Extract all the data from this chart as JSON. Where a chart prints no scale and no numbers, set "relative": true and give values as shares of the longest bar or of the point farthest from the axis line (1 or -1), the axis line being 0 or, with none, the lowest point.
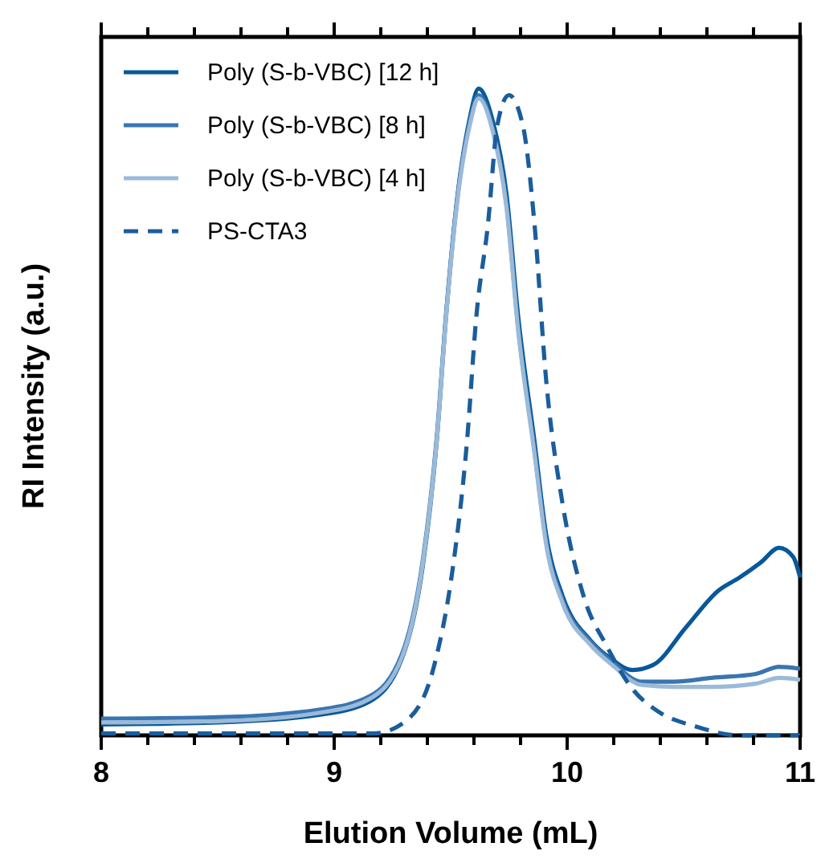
{
  "chart_data": {
    "type": "line",
    "relative": true,
    "xlabel": "Elution Volume (mL)",
    "ylabel": "RI Intensity (a.u.)",
    "xlim": [
      8,
      11
    ],
    "xticks": [
      8,
      {
        "value": 8.2,
        "label": null
      },
      {
        "value": 8.4,
        "label": null
      },
      {
        "value": 8.6,
        "label": null
      },
      {
        "value": 8.8,
        "label": null
      },
      9,
      {
        "value": 9.2,
        "label": null
      },
      {
        "value": 9.4,
        "label": null
      },
      {
        "value": 9.6,
        "label": null
      },
      {
        "value": 9.8,
        "label": null
      },
      10,
      {
        "value": 10.2,
        "label": null
      },
      {
        "value": 10.4,
        "label": null
      },
      {
        "value": 10.6,
        "label": null
      },
      {
        "value": 10.8,
        "label": null
      },
      11
    ],
    "tick_labels": "x",
    "grid": false,
    "legend": "top left",
    "marker": "none",
    "series": [
      {
        "name": "Poly (S-b-VBC) [12 h]",
        "color": "#08589a",
        "line_style": "solid",
        "x": [
          8.0,
          8.5,
          8.94,
          9.15,
          9.29,
          9.38,
          9.44,
          9.48,
          9.53,
          9.58,
          9.62,
          9.68,
          9.74,
          9.79,
          9.86,
          9.91,
          9.98,
          10.1,
          10.19,
          10.28,
          10.37,
          10.51,
          10.65,
          10.74,
          10.83,
          10.91,
          10.97,
          11.0
        ],
        "values": [
          0.017,
          0.02,
          0.032,
          0.052,
          0.118,
          0.261,
          0.454,
          0.647,
          0.836,
          0.951,
          1.0,
          0.951,
          0.836,
          0.647,
          0.454,
          0.31,
          0.216,
          0.147,
          0.118,
          0.101,
          0.109,
          0.167,
          0.224,
          0.244,
          0.267,
          0.29,
          0.276,
          0.244
        ]
      },
      {
        "name": "Poly (S-b-VBC) [8 h]",
        "color": "#3a75b0",
        "line_style": "solid",
        "x": [
          8.0,
          8.5,
          8.94,
          9.15,
          9.29,
          9.38,
          9.44,
          9.48,
          9.53,
          9.58,
          9.62,
          9.68,
          9.74,
          9.79,
          9.86,
          9.91,
          9.98,
          10.1,
          10.19,
          10.32,
          10.46,
          10.62,
          10.81,
          10.91,
          11.0
        ],
        "values": [
          0.026,
          0.028,
          0.04,
          0.06,
          0.125,
          0.27,
          0.46,
          0.65,
          0.835,
          0.945,
          0.99,
          0.94,
          0.82,
          0.63,
          0.44,
          0.3,
          0.21,
          0.145,
          0.115,
          0.083,
          0.083,
          0.089,
          0.095,
          0.106,
          0.103
        ]
      },
      {
        "name": "Poly (S-b-VBC) [4 h]",
        "color": "#9bbad8",
        "line_style": "solid",
        "x": [
          8.0,
          8.5,
          8.94,
          9.15,
          9.29,
          9.38,
          9.44,
          9.48,
          9.53,
          9.58,
          9.62,
          9.68,
          9.74,
          9.79,
          9.86,
          9.91,
          9.98,
          10.1,
          10.19,
          10.32,
          10.46,
          10.62,
          10.81,
          10.91,
          11.0
        ],
        "values": [
          0.02,
          0.022,
          0.035,
          0.056,
          0.12,
          0.265,
          0.455,
          0.645,
          0.83,
          0.94,
          0.985,
          0.935,
          0.815,
          0.625,
          0.435,
          0.295,
          0.205,
          0.14,
          0.11,
          0.078,
          0.075,
          0.075,
          0.08,
          0.089,
          0.086
        ]
      },
      {
        "name": "PS-CTA3",
        "color": "#1b5d9c",
        "line_style": "dashed",
        "x": [
          8.0,
          9.0,
          9.17,
          9.31,
          9.43,
          9.51,
          9.57,
          9.61,
          9.66,
          9.7,
          9.75,
          9.81,
          9.86,
          9.91,
          9.98,
          10.07,
          10.17,
          10.28,
          10.39,
          10.55,
          10.74,
          11.0
        ],
        "values": [
          0.003,
          0.003,
          0.003,
          0.023,
          0.109,
          0.261,
          0.454,
          0.647,
          0.79,
          0.943,
          0.99,
          0.943,
          0.79,
          0.549,
          0.359,
          0.216,
          0.138,
          0.072,
          0.037,
          0.014,
          0,
          0
        ]
      }
    ]
  }
}
